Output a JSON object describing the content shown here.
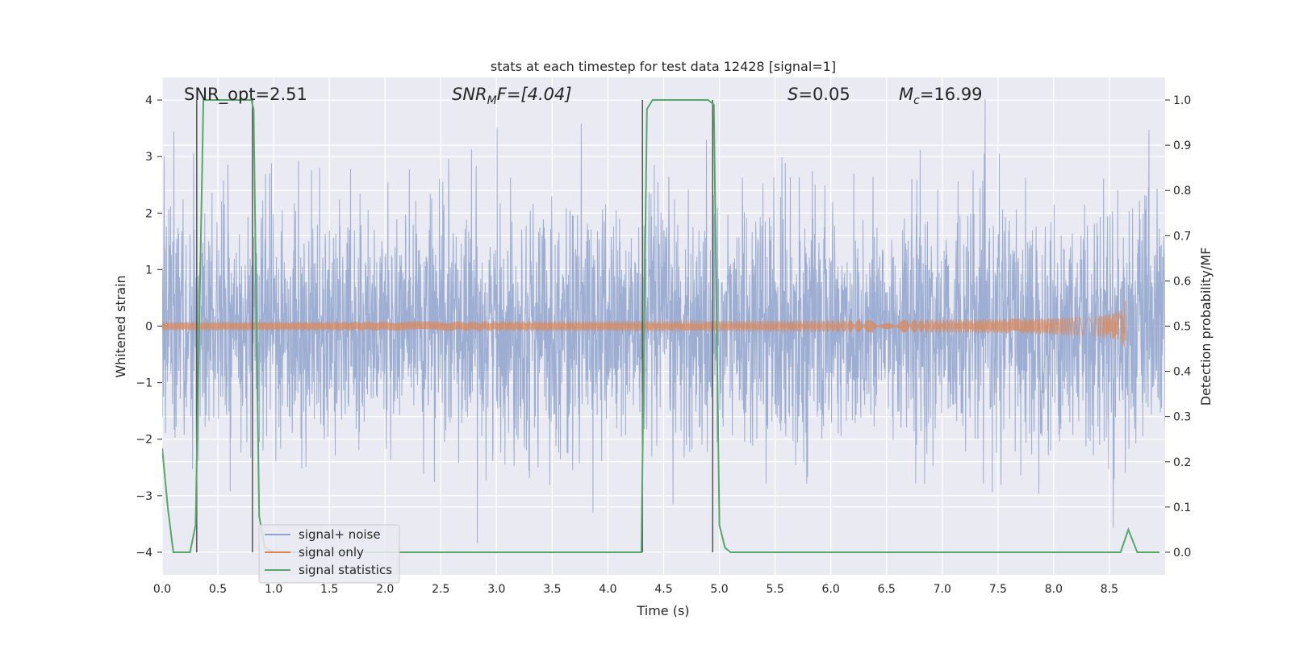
{
  "chart_data": {
    "type": "line",
    "title": "stats at each timestep for test data 12428 [signal=1]",
    "xlabel": "Time (s)",
    "ylabel": "Whitened strain",
    "ylabel_right": "Detection probability/MF",
    "xlim": [
      0.0,
      9.0
    ],
    "ylim": [
      -4.4,
      4.4
    ],
    "ylim_right": [
      -0.05,
      1.05
    ],
    "x_ticks": [
      "0.0",
      "0.5",
      "1.0",
      "1.5",
      "2.0",
      "2.5",
      "3.0",
      "3.5",
      "4.0",
      "4.5",
      "5.0",
      "5.5",
      "6.0",
      "6.5",
      "7.0",
      "7.5",
      "8.0",
      "8.5"
    ],
    "y_ticks": [
      "4",
      "3",
      "2",
      "1",
      "0",
      "−1",
      "−2",
      "−3",
      "−4"
    ],
    "y_ticks_right": [
      "1.0",
      "0.9",
      "0.8",
      "0.7",
      "0.6",
      "0.5",
      "0.4",
      "0.3",
      "0.2",
      "0.1",
      "0.0"
    ],
    "grid": true,
    "legend_position": "lower-left",
    "annotations": {
      "snr_opt": "SNR_opt=2.51",
      "snr_mf_base": "SNR",
      "snr_mf_sub": "M",
      "snr_mf_tail": "F=[4.04]",
      "s_base": "S",
      "s_tail": "=0.05",
      "mc_base": "M",
      "mc_sub": "c",
      "mc_tail": "=16.99"
    },
    "series": [
      {
        "name": "signal+ noise",
        "color": "#8fa3cc",
        "description": "whitened strain noise, amplitude approx ±2 with spikes to ±4"
      },
      {
        "name": "signal only",
        "color": "#dd8452",
        "chirp_end": 8.65,
        "chirp_amplitude": 0.5
      },
      {
        "name": "signal statistics",
        "color": "#55a868",
        "x": [
          0.0,
          0.05,
          0.1,
          0.25,
          0.3,
          0.37,
          0.4,
          0.5,
          0.6,
          0.7,
          0.8,
          0.82,
          0.87,
          0.92,
          1.0,
          2.0,
          3.0,
          4.0,
          4.3,
          4.35,
          4.4,
          4.5,
          4.9,
          4.95,
          5.0,
          5.05,
          5.1,
          6.0,
          7.0,
          8.0,
          8.6,
          8.67,
          8.75,
          8.85,
          8.95
        ],
        "values": [
          0.23,
          0.1,
          0.0,
          0.0,
          0.06,
          1.0,
          1.0,
          1.0,
          1.0,
          1.0,
          1.0,
          0.98,
          0.08,
          0.01,
          0.0,
          0.0,
          0.0,
          0.0,
          0.0,
          0.98,
          1.0,
          1.0,
          1.0,
          0.99,
          0.06,
          0.01,
          0.0,
          0.0,
          0.0,
          0.0,
          0.0,
          0.05,
          0.0,
          0.0,
          0.0
        ]
      }
    ],
    "vertical_lines": [
      0.31,
      0.81,
      4.31,
      4.94
    ]
  }
}
